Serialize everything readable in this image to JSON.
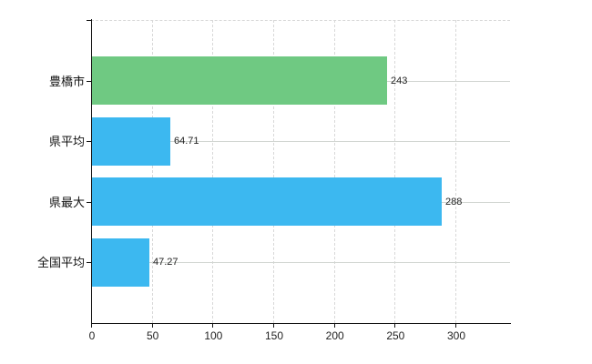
{
  "chart_data": {
    "type": "bar",
    "orientation": "horizontal",
    "title": "",
    "xlabel": "",
    "ylabel": "",
    "categories": [
      "豊橋市",
      "県平均",
      "県最大",
      "全国平均"
    ],
    "values": [
      243,
      64.71,
      288,
      47.27
    ],
    "value_labels": [
      "243",
      "64.71",
      "288",
      "47.27"
    ],
    "bar_colors": [
      "#6fc982",
      "#3cb8f0",
      "#3cb8f0",
      "#3cb8f0"
    ],
    "xlim": [
      0,
      345
    ],
    "xticks": [
      0,
      50,
      100,
      150,
      200,
      250,
      300
    ],
    "grid": true,
    "legend": false,
    "colors": {
      "green_bar": "#6fc982",
      "blue_bar": "#3cb8f0",
      "grid_dashed": "#d8d8d8",
      "grid_solid": "#d2d6d2",
      "axis": "#141414",
      "tick_label": "#222222",
      "category_label": "#111111",
      "background": "#ffffff"
    }
  }
}
